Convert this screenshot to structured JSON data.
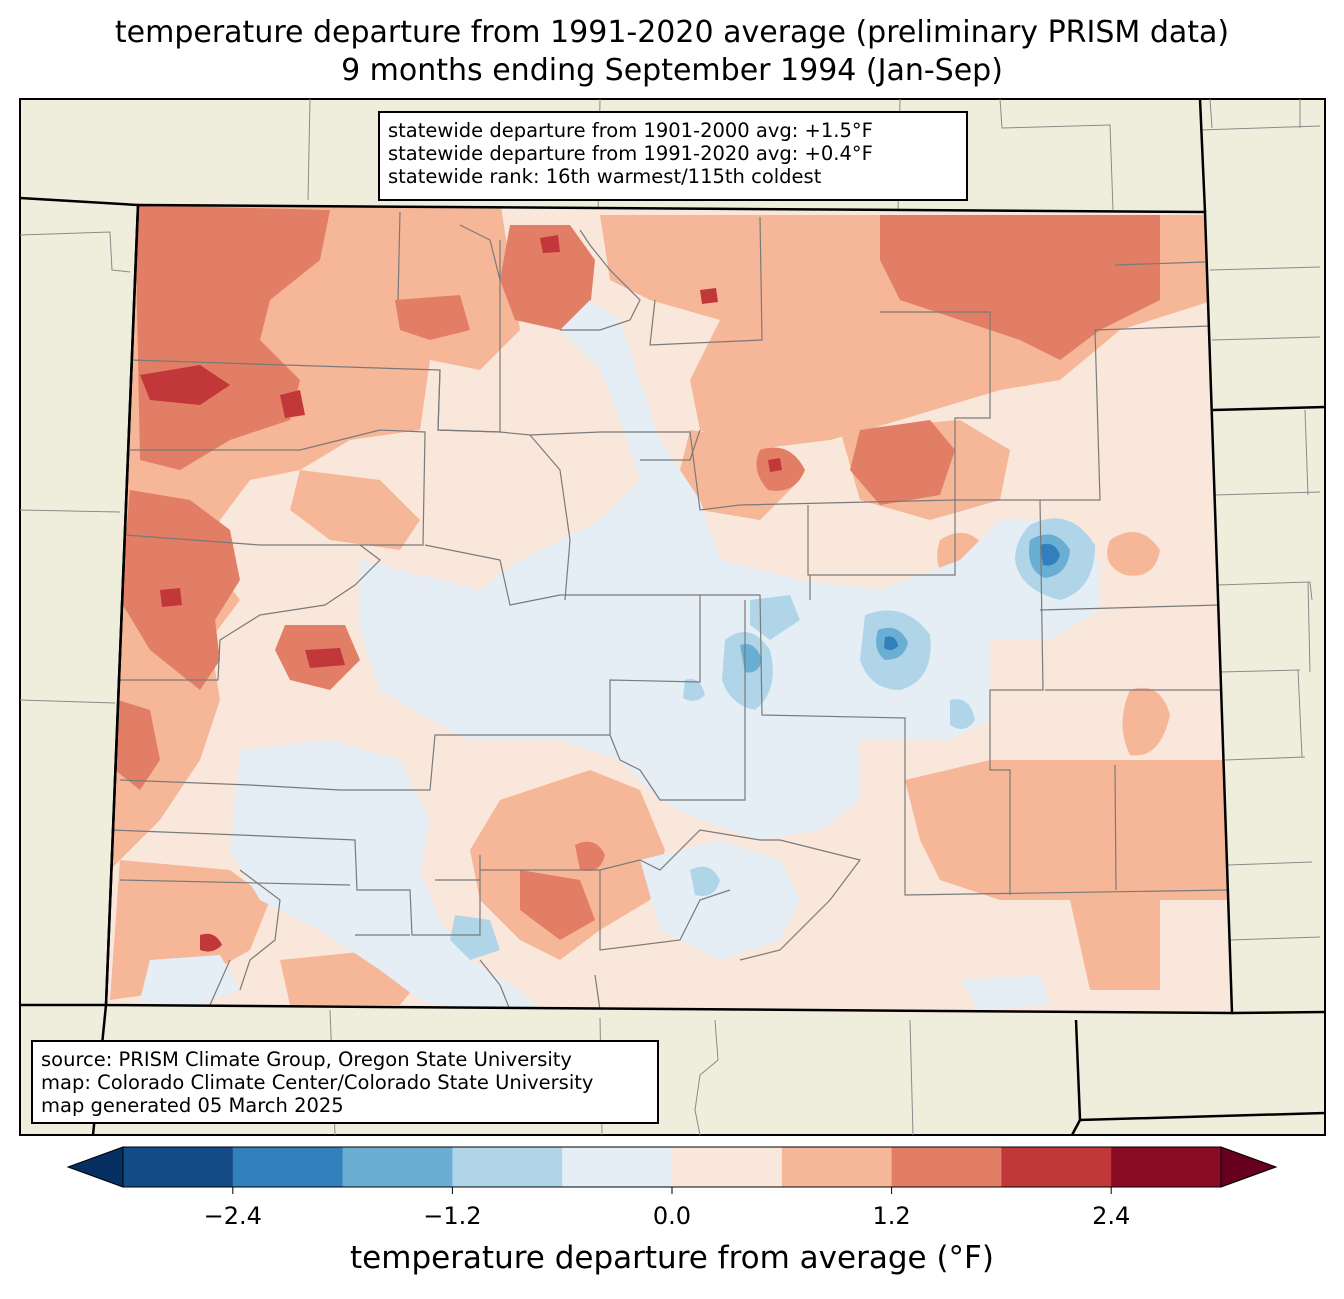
{
  "title": {
    "line1": "temperature departure from 1991-2020 average (preliminary PRISM data)",
    "line2": "9 months ending September 1994 (Jan-Sep)"
  },
  "stats_box": {
    "line1": "statewide departure from 1901-2000 avg: +1.5°F",
    "line2": "statewide departure from 1991-2020 avg: +0.4°F",
    "line3": "statewide rank: 16th warmest/115th coldest"
  },
  "source_box": {
    "line1": "source: PRISM Climate Group, Oregon State University",
    "line2": "map: Colorado Climate Center/Colorado State University",
    "line3": "map generated 05 March 2025"
  },
  "colorbar": {
    "label": "temperature departure from average (°F)",
    "ticks": [
      {
        "value": -2.4,
        "label": "−2.4"
      },
      {
        "value": -1.2,
        "label": "−1.2"
      },
      {
        "value": 0.0,
        "label": "0.0"
      },
      {
        "value": 1.2,
        "label": "1.2"
      },
      {
        "value": 2.4,
        "label": "2.4"
      }
    ],
    "min": -3.0,
    "max": 3.0,
    "step": 0.6,
    "under_color": "#053061",
    "over_color": "#67001f",
    "colors": [
      "#134b87",
      "#3280bb",
      "#6aaed3",
      "#b0d5e8",
      "#e4eef4",
      "#fae7dc",
      "#f6b698",
      "#e17e65",
      "#c1373a",
      "#8a0b24"
    ]
  },
  "map_colors": {
    "land_outside": "#efeedc",
    "county_lines": "#7a7a7a",
    "state_border": "#000000"
  }
}
